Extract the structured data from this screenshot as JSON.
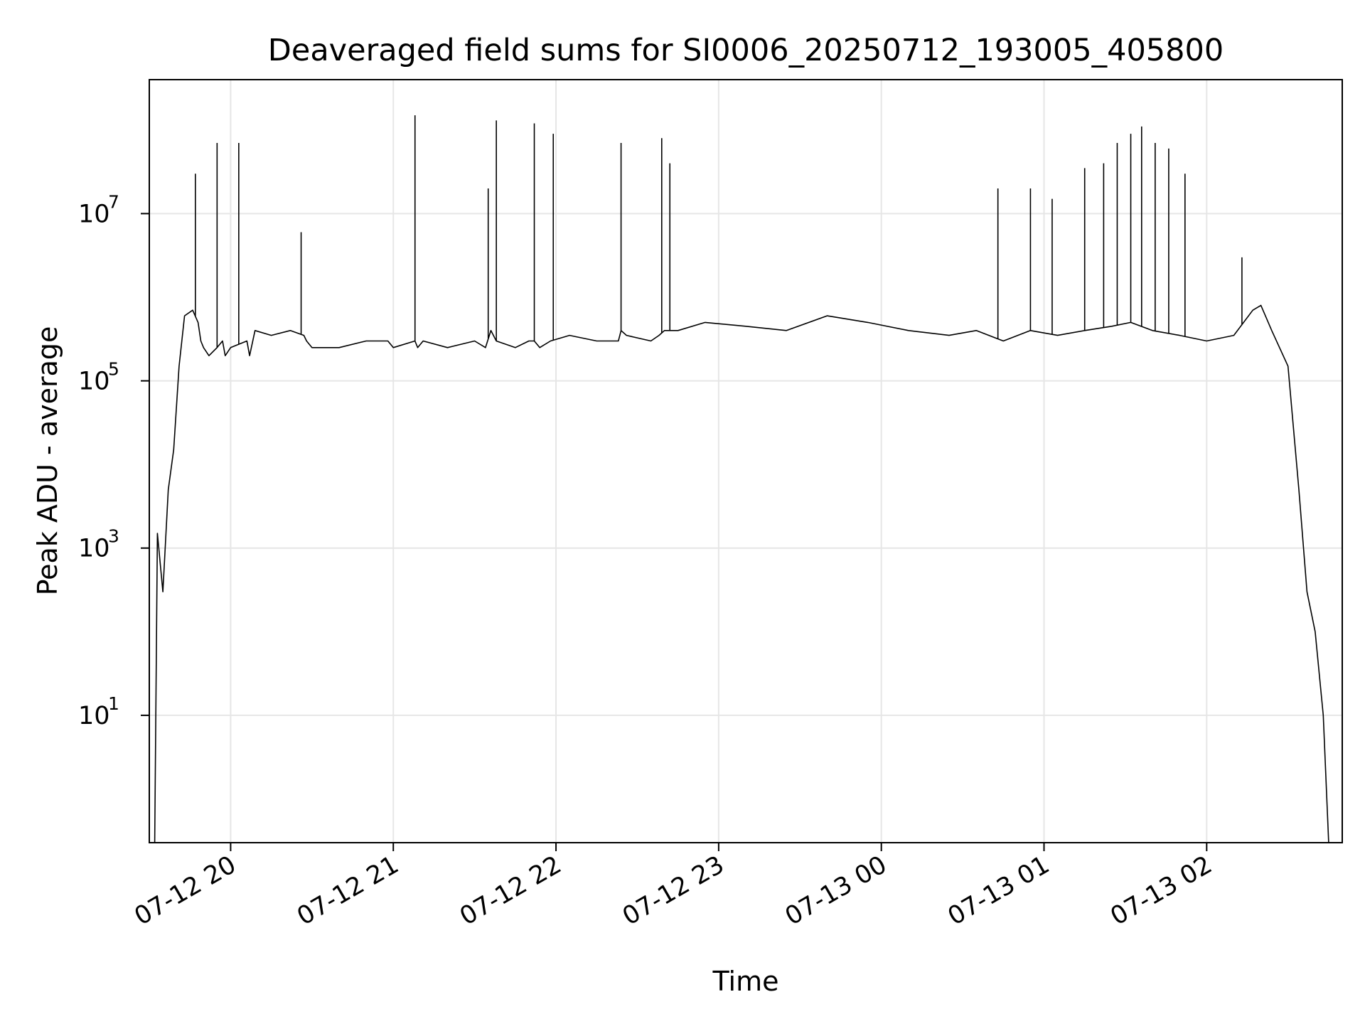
{
  "chart_data": {
    "type": "line",
    "title": "Deaveraged field sums for SI0006_20250712_193005_405800",
    "xlabel": "Time",
    "ylabel": "Peak ADU - average",
    "yscale": "log",
    "grid": true,
    "x_ticks": [
      "07-12 20",
      "07-12 21",
      "07-12 22",
      "07-12 23",
      "07-13 00",
      "07-13 01",
      "07-13 02"
    ],
    "y_ticks": [
      {
        "base": "10",
        "exp": "1",
        "value": 10
      },
      {
        "base": "10",
        "exp": "3",
        "value": 1000
      },
      {
        "base": "10",
        "exp": "5",
        "value": 100000
      },
      {
        "base": "10",
        "exp": "7",
        "value": 10000000
      }
    ],
    "xlim": [
      "2025-07-12 19:30",
      "2025-07-13 02:50"
    ],
    "ylim": [
      0.3,
      400000000
    ],
    "series": [
      {
        "color": "#000000",
        "x": [
          "2025-07-12 19:32",
          "2025-07-12 19:33",
          "2025-07-12 19:35",
          "2025-07-12 19:37",
          "2025-07-12 19:39",
          "2025-07-12 19:41",
          "2025-07-12 19:43",
          "2025-07-12 19:46",
          "2025-07-12 19:48",
          "2025-07-12 19:49",
          "2025-07-12 19:50",
          "2025-07-12 19:52",
          "2025-07-12 19:55",
          "2025-07-12 19:57",
          "2025-07-12 19:58",
          "2025-07-12 20:00",
          "2025-07-12 20:06",
          "2025-07-12 20:07",
          "2025-07-12 20:09",
          "2025-07-12 20:15",
          "2025-07-12 20:22",
          "2025-07-12 20:27",
          "2025-07-12 20:28",
          "2025-07-12 20:30",
          "2025-07-12 20:40",
          "2025-07-12 20:50",
          "2025-07-12 20:58",
          "2025-07-12 21:00",
          "2025-07-12 21:08",
          "2025-07-12 21:09",
          "2025-07-12 21:11",
          "2025-07-12 21:20",
          "2025-07-12 21:30",
          "2025-07-12 21:34",
          "2025-07-12 21:36",
          "2025-07-12 21:38",
          "2025-07-12 21:45",
          "2025-07-12 21:50",
          "2025-07-12 21:52",
          "2025-07-12 21:54",
          "2025-07-12 21:58",
          "2025-07-12 22:05",
          "2025-07-12 22:15",
          "2025-07-12 22:23",
          "2025-07-12 22:24",
          "2025-07-12 22:26",
          "2025-07-12 22:35",
          "2025-07-12 22:38",
          "2025-07-12 22:40",
          "2025-07-12 22:45",
          "2025-07-12 22:55",
          "2025-07-12 23:10",
          "2025-07-12 23:25",
          "2025-07-12 23:40",
          "2025-07-12 23:55",
          "2025-07-13 00:10",
          "2025-07-13 00:25",
          "2025-07-13 00:35",
          "2025-07-13 00:45",
          "2025-07-13 00:55",
          "2025-07-13 01:05",
          "2025-07-13 01:15",
          "2025-07-13 01:25",
          "2025-07-13 01:32",
          "2025-07-13 01:40",
          "2025-07-13 01:50",
          "2025-07-13 02:00",
          "2025-07-13 02:10",
          "2025-07-13 02:17",
          "2025-07-13 02:20",
          "2025-07-13 02:24",
          "2025-07-13 02:30",
          "2025-07-13 02:34",
          "2025-07-13 02:37",
          "2025-07-13 02:40",
          "2025-07-13 02:43",
          "2025-07-13 02:45"
        ],
        "y": [
          0.3,
          1500,
          300,
          5000,
          15000,
          150000,
          600000,
          700000,
          500000,
          300000,
          250000,
          200000,
          250000,
          300000,
          200000,
          250000,
          300000,
          200000,
          400000,
          350000,
          400000,
          350000,
          300000,
          250000,
          250000,
          300000,
          300000,
          250000,
          300000,
          250000,
          300000,
          250000,
          300000,
          250000,
          400000,
          300000,
          250000,
          300000,
          300000,
          250000,
          300000,
          350000,
          300000,
          300000,
          400000,
          350000,
          300000,
          350000,
          400000,
          400000,
          500000,
          450000,
          400000,
          600000,
          500000,
          400000,
          350000,
          400000,
          300000,
          400000,
          350000,
          400000,
          450000,
          500000,
          400000,
          350000,
          300000,
          350000,
          700000,
          800000,
          400000,
          150000,
          5000,
          300,
          100,
          10,
          0.3
        ],
        "spikes": [
          {
            "x": "2025-07-12 19:47",
            "y": 30000000
          },
          {
            "x": "2025-07-12 19:55",
            "y": 70000000
          },
          {
            "x": "2025-07-12 20:03",
            "y": 70000000
          },
          {
            "x": "2025-07-12 20:26",
            "y": 6000000
          },
          {
            "x": "2025-07-12 21:08",
            "y": 150000000
          },
          {
            "x": "2025-07-12 21:35",
            "y": 20000000
          },
          {
            "x": "2025-07-12 21:38",
            "y": 130000000
          },
          {
            "x": "2025-07-12 21:52",
            "y": 120000000
          },
          {
            "x": "2025-07-12 21:59",
            "y": 90000000
          },
          {
            "x": "2025-07-12 22:24",
            "y": 70000000
          },
          {
            "x": "2025-07-12 22:39",
            "y": 80000000
          },
          {
            "x": "2025-07-12 22:42",
            "y": 40000000
          },
          {
            "x": "2025-07-13 00:43",
            "y": 20000000
          },
          {
            "x": "2025-07-13 00:55",
            "y": 20000000
          },
          {
            "x": "2025-07-13 01:03",
            "y": 15000000
          },
          {
            "x": "2025-07-13 01:15",
            "y": 35000000
          },
          {
            "x": "2025-07-13 01:22",
            "y": 40000000
          },
          {
            "x": "2025-07-13 01:27",
            "y": 70000000
          },
          {
            "x": "2025-07-13 01:32",
            "y": 90000000
          },
          {
            "x": "2025-07-13 01:36",
            "y": 110000000
          },
          {
            "x": "2025-07-13 01:41",
            "y": 70000000
          },
          {
            "x": "2025-07-13 01:46",
            "y": 60000000
          },
          {
            "x": "2025-07-13 01:52",
            "y": 30000000
          },
          {
            "x": "2025-07-13 02:13",
            "y": 3000000
          }
        ]
      }
    ]
  }
}
